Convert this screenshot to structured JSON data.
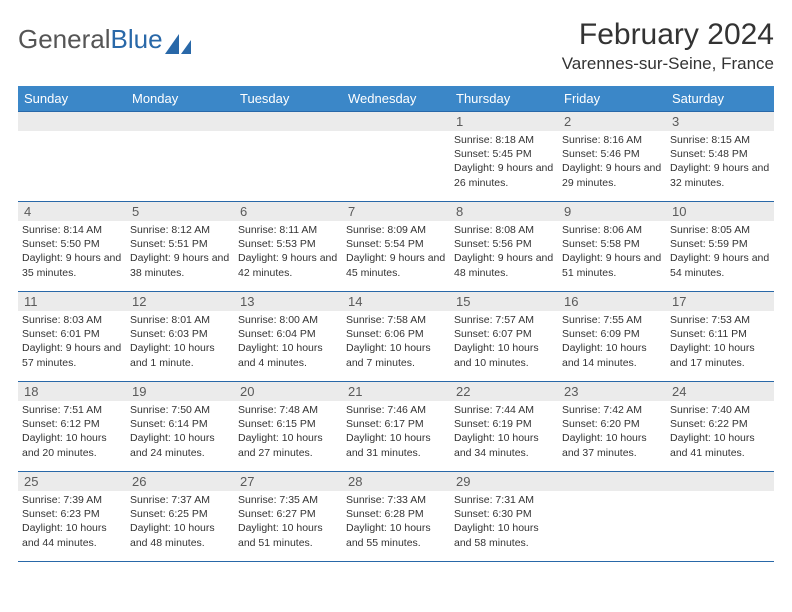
{
  "logo": {
    "text_gray": "General",
    "text_blue": "Blue"
  },
  "header": {
    "month": "February 2024",
    "location": "Varennes-sur-Seine, France"
  },
  "weekdays": [
    "Sunday",
    "Monday",
    "Tuesday",
    "Wednesday",
    "Thursday",
    "Friday",
    "Saturday"
  ],
  "colors": {
    "header_bg": "#3b87c8",
    "border": "#2968a8",
    "daynum_bg": "#ebebeb"
  },
  "weeks": [
    [
      null,
      null,
      null,
      null,
      {
        "n": "1",
        "sunrise": "Sunrise: 8:18 AM",
        "sunset": "Sunset: 5:45 PM",
        "daylight": "Daylight: 9 hours and 26 minutes."
      },
      {
        "n": "2",
        "sunrise": "Sunrise: 8:16 AM",
        "sunset": "Sunset: 5:46 PM",
        "daylight": "Daylight: 9 hours and 29 minutes."
      },
      {
        "n": "3",
        "sunrise": "Sunrise: 8:15 AM",
        "sunset": "Sunset: 5:48 PM",
        "daylight": "Daylight: 9 hours and 32 minutes."
      }
    ],
    [
      {
        "n": "4",
        "sunrise": "Sunrise: 8:14 AM",
        "sunset": "Sunset: 5:50 PM",
        "daylight": "Daylight: 9 hours and 35 minutes."
      },
      {
        "n": "5",
        "sunrise": "Sunrise: 8:12 AM",
        "sunset": "Sunset: 5:51 PM",
        "daylight": "Daylight: 9 hours and 38 minutes."
      },
      {
        "n": "6",
        "sunrise": "Sunrise: 8:11 AM",
        "sunset": "Sunset: 5:53 PM",
        "daylight": "Daylight: 9 hours and 42 minutes."
      },
      {
        "n": "7",
        "sunrise": "Sunrise: 8:09 AM",
        "sunset": "Sunset: 5:54 PM",
        "daylight": "Daylight: 9 hours and 45 minutes."
      },
      {
        "n": "8",
        "sunrise": "Sunrise: 8:08 AM",
        "sunset": "Sunset: 5:56 PM",
        "daylight": "Daylight: 9 hours and 48 minutes."
      },
      {
        "n": "9",
        "sunrise": "Sunrise: 8:06 AM",
        "sunset": "Sunset: 5:58 PM",
        "daylight": "Daylight: 9 hours and 51 minutes."
      },
      {
        "n": "10",
        "sunrise": "Sunrise: 8:05 AM",
        "sunset": "Sunset: 5:59 PM",
        "daylight": "Daylight: 9 hours and 54 minutes."
      }
    ],
    [
      {
        "n": "11",
        "sunrise": "Sunrise: 8:03 AM",
        "sunset": "Sunset: 6:01 PM",
        "daylight": "Daylight: 9 hours and 57 minutes."
      },
      {
        "n": "12",
        "sunrise": "Sunrise: 8:01 AM",
        "sunset": "Sunset: 6:03 PM",
        "daylight": "Daylight: 10 hours and 1 minute."
      },
      {
        "n": "13",
        "sunrise": "Sunrise: 8:00 AM",
        "sunset": "Sunset: 6:04 PM",
        "daylight": "Daylight: 10 hours and 4 minutes."
      },
      {
        "n": "14",
        "sunrise": "Sunrise: 7:58 AM",
        "sunset": "Sunset: 6:06 PM",
        "daylight": "Daylight: 10 hours and 7 minutes."
      },
      {
        "n": "15",
        "sunrise": "Sunrise: 7:57 AM",
        "sunset": "Sunset: 6:07 PM",
        "daylight": "Daylight: 10 hours and 10 minutes."
      },
      {
        "n": "16",
        "sunrise": "Sunrise: 7:55 AM",
        "sunset": "Sunset: 6:09 PM",
        "daylight": "Daylight: 10 hours and 14 minutes."
      },
      {
        "n": "17",
        "sunrise": "Sunrise: 7:53 AM",
        "sunset": "Sunset: 6:11 PM",
        "daylight": "Daylight: 10 hours and 17 minutes."
      }
    ],
    [
      {
        "n": "18",
        "sunrise": "Sunrise: 7:51 AM",
        "sunset": "Sunset: 6:12 PM",
        "daylight": "Daylight: 10 hours and 20 minutes."
      },
      {
        "n": "19",
        "sunrise": "Sunrise: 7:50 AM",
        "sunset": "Sunset: 6:14 PM",
        "daylight": "Daylight: 10 hours and 24 minutes."
      },
      {
        "n": "20",
        "sunrise": "Sunrise: 7:48 AM",
        "sunset": "Sunset: 6:15 PM",
        "daylight": "Daylight: 10 hours and 27 minutes."
      },
      {
        "n": "21",
        "sunrise": "Sunrise: 7:46 AM",
        "sunset": "Sunset: 6:17 PM",
        "daylight": "Daylight: 10 hours and 31 minutes."
      },
      {
        "n": "22",
        "sunrise": "Sunrise: 7:44 AM",
        "sunset": "Sunset: 6:19 PM",
        "daylight": "Daylight: 10 hours and 34 minutes."
      },
      {
        "n": "23",
        "sunrise": "Sunrise: 7:42 AM",
        "sunset": "Sunset: 6:20 PM",
        "daylight": "Daylight: 10 hours and 37 minutes."
      },
      {
        "n": "24",
        "sunrise": "Sunrise: 7:40 AM",
        "sunset": "Sunset: 6:22 PM",
        "daylight": "Daylight: 10 hours and 41 minutes."
      }
    ],
    [
      {
        "n": "25",
        "sunrise": "Sunrise: 7:39 AM",
        "sunset": "Sunset: 6:23 PM",
        "daylight": "Daylight: 10 hours and 44 minutes."
      },
      {
        "n": "26",
        "sunrise": "Sunrise: 7:37 AM",
        "sunset": "Sunset: 6:25 PM",
        "daylight": "Daylight: 10 hours and 48 minutes."
      },
      {
        "n": "27",
        "sunrise": "Sunrise: 7:35 AM",
        "sunset": "Sunset: 6:27 PM",
        "daylight": "Daylight: 10 hours and 51 minutes."
      },
      {
        "n": "28",
        "sunrise": "Sunrise: 7:33 AM",
        "sunset": "Sunset: 6:28 PM",
        "daylight": "Daylight: 10 hours and 55 minutes."
      },
      {
        "n": "29",
        "sunrise": "Sunrise: 7:31 AM",
        "sunset": "Sunset: 6:30 PM",
        "daylight": "Daylight: 10 hours and 58 minutes."
      },
      null,
      null
    ]
  ]
}
